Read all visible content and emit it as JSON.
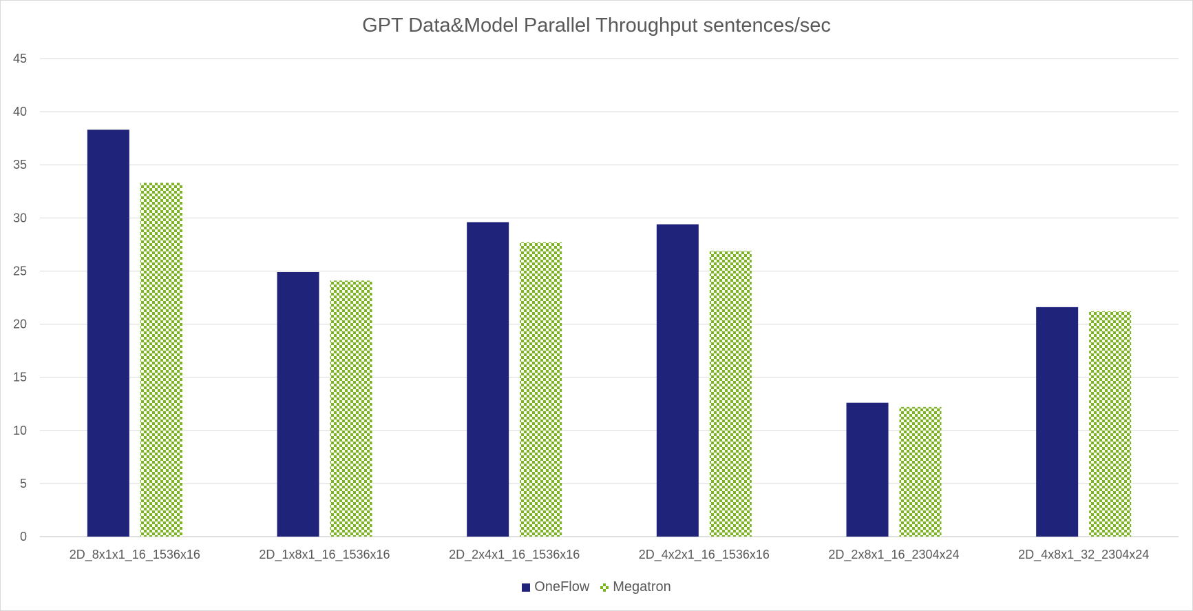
{
  "chart_data": {
    "type": "bar",
    "title": "GPT Data&Model Parallel Throughput  sentences/sec",
    "xlabel": "",
    "ylabel": "",
    "ylim": [
      0,
      45
    ],
    "yticks": [
      0,
      5,
      10,
      15,
      20,
      25,
      30,
      35,
      40,
      45
    ],
    "grid": true,
    "legend_position": "bottom",
    "categories": [
      "2D_8x1x1_16_1536x16",
      "2D_1x8x1_16_1536x16",
      "2D_2x4x1_16_1536x16",
      "2D_4x2x1_16_1536x16",
      "2D_2x8x1_16_2304x24",
      "2D_4x8x1_32_2304x24"
    ],
    "series": [
      {
        "name": "OneFlow",
        "color": "#1f237a",
        "pattern": "solid",
        "values": [
          38.3,
          24.9,
          29.6,
          29.4,
          12.6,
          21.6
        ]
      },
      {
        "name": "Megatron",
        "color": "#7ab51d",
        "pattern": "checker",
        "values": [
          33.3,
          24.1,
          27.7,
          26.9,
          12.2,
          21.2
        ]
      }
    ]
  }
}
